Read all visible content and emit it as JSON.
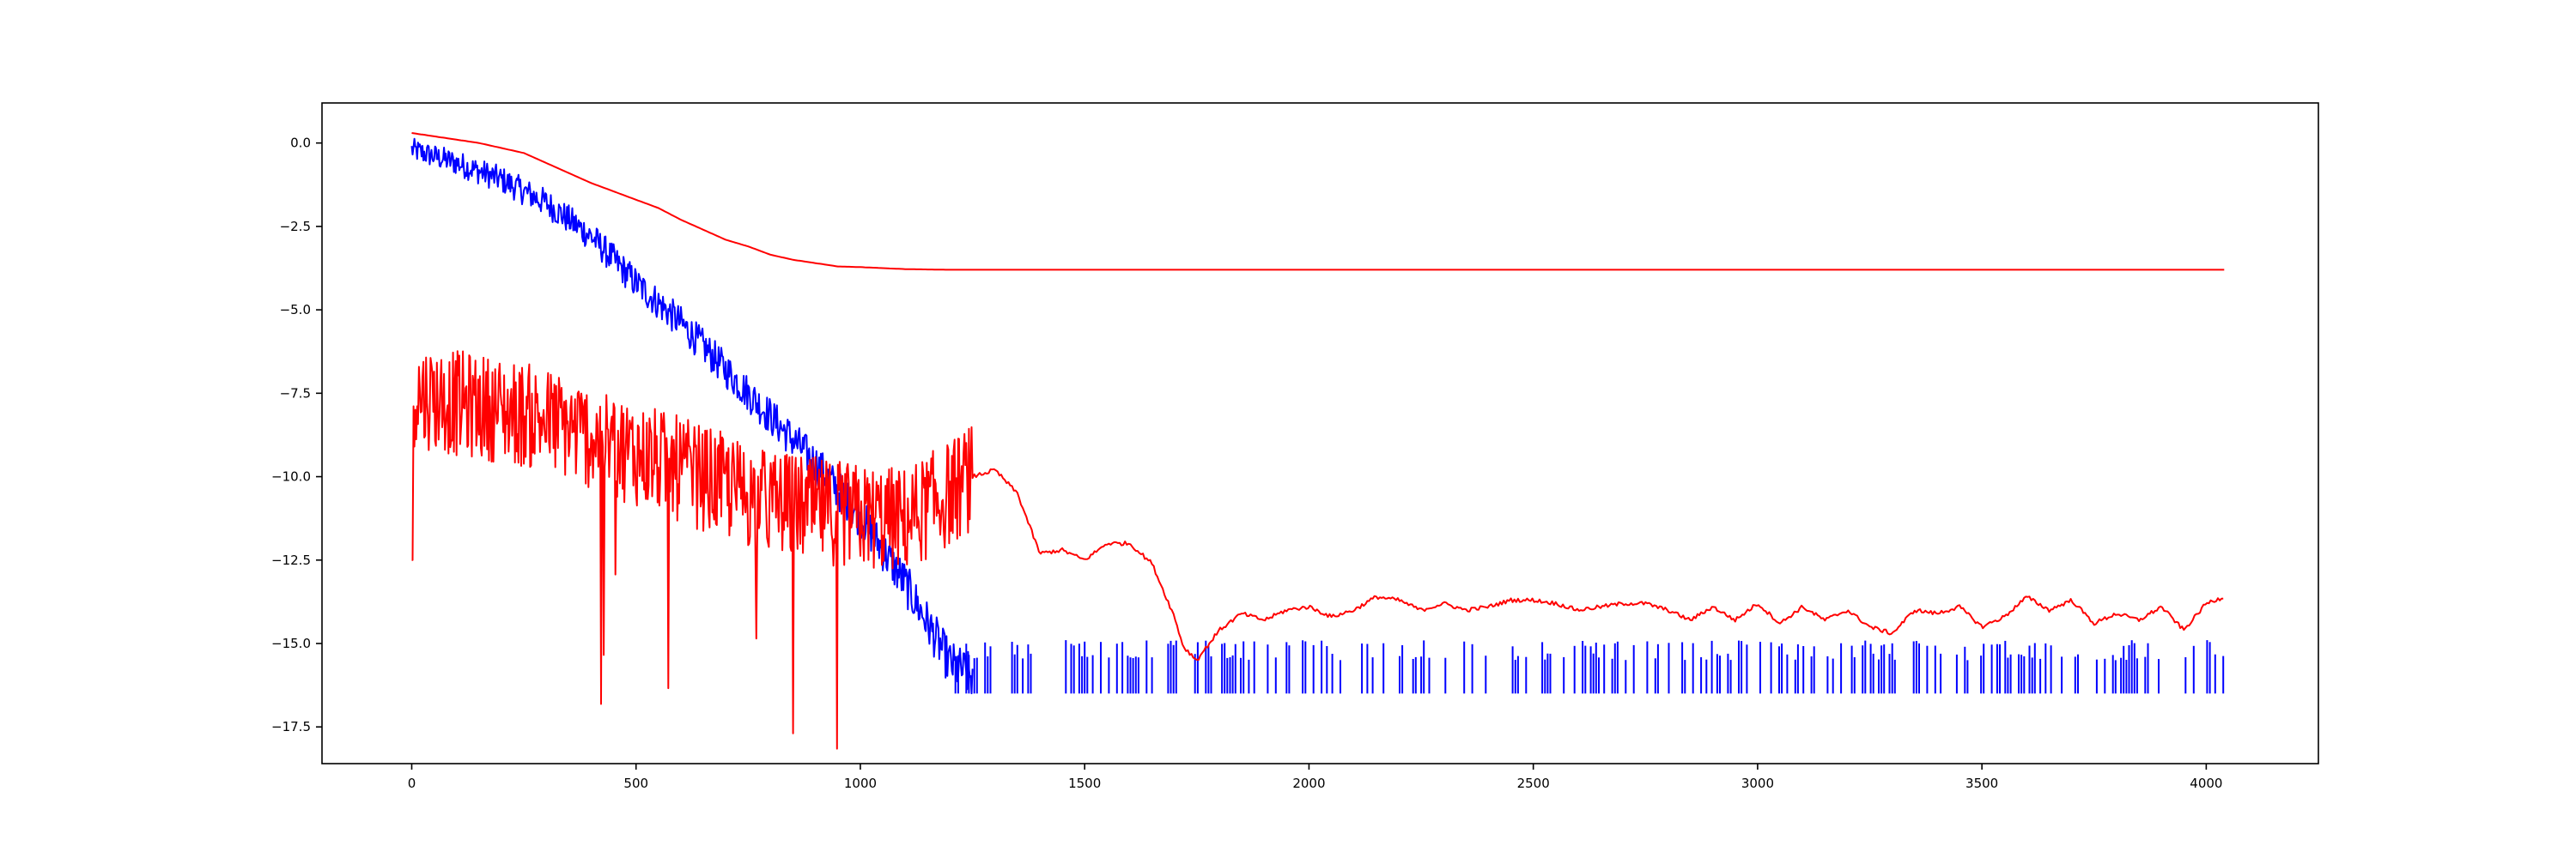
{
  "chart_data": {
    "type": "line",
    "title": "",
    "xlabel": "",
    "ylabel": "",
    "xlim": [
      -200,
      4250
    ],
    "ylim": [
      -18.6,
      1.2
    ],
    "x_ticks": [
      0,
      500,
      1000,
      1500,
      2000,
      2500,
      3000,
      3500,
      4000
    ],
    "x_tick_labels": [
      "0",
      "500",
      "1000",
      "1500",
      "2000",
      "2500",
      "3000",
      "3500",
      "4000"
    ],
    "y_ticks": [
      0.0,
      -2.5,
      -5.0,
      -7.5,
      -10.0,
      -12.5,
      -15.0,
      -17.5
    ],
    "y_tick_labels": [
      "0.0",
      "−2.5",
      "−5.0",
      "−7.5",
      "−10.0",
      "−12.5",
      "−15.0",
      "−17.5"
    ],
    "grid": false,
    "legend": "none",
    "series": [
      {
        "color": "#ff0000",
        "style": "smooth-upper",
        "x": [
          0,
          50,
          100,
          150,
          200,
          250,
          300,
          350,
          400,
          450,
          500,
          550,
          600,
          650,
          700,
          750,
          800,
          850,
          900,
          950,
          1000,
          1100,
          1200,
          1400,
          1600,
          2000,
          2500,
          3000,
          3500,
          4040
        ],
        "y": [
          0.3,
          0.2,
          0.1,
          0.0,
          -0.15,
          -0.3,
          -0.6,
          -0.9,
          -1.2,
          -1.45,
          -1.7,
          -1.95,
          -2.3,
          -2.6,
          -2.9,
          -3.1,
          -3.35,
          -3.5,
          -3.6,
          -3.7,
          -3.72,
          -3.78,
          -3.8,
          -3.8,
          -3.8,
          -3.8,
          -3.8,
          -3.8,
          -3.8,
          -3.8
        ]
      },
      {
        "color": "#0000ff",
        "style": "noisy-descent",
        "x": [
          0,
          100,
          200,
          300,
          400,
          500,
          600,
          700,
          800,
          900,
          1000,
          1100,
          1150,
          1200,
          1250
        ],
        "y": [
          -0.2,
          -0.6,
          -1.1,
          -1.8,
          -2.8,
          -4.2,
          -5.4,
          -6.8,
          -8.2,
          -9.6,
          -11.2,
          -13.2,
          -14.4,
          -15.6,
          -16.0
        ],
        "floor_segments": {
          "y_top": -15.3,
          "y_bottom": -16.5,
          "x_from": 1200,
          "x_to": 4040
        }
      },
      {
        "color": "#ff0000",
        "style": "noisy-lower",
        "x": [
          0,
          100,
          200,
          300,
          400,
          500,
          600,
          700,
          800,
          900,
          1000,
          1100,
          1200,
          1250,
          1300,
          1350,
          1400,
          1450,
          1500,
          1550,
          1600,
          1650,
          1700,
          1720,
          1750,
          1800,
          1850,
          1900,
          1950,
          2000,
          2050,
          2100,
          2150,
          2200,
          2250,
          2300,
          2350,
          2400,
          2450,
          2500,
          2550,
          2600,
          2650,
          2700,
          2750,
          2800,
          2850,
          2900,
          2950,
          3000,
          3050,
          3100,
          3150,
          3200,
          3250,
          3300,
          3350,
          3400,
          3450,
          3500,
          3550,
          3600,
          3650,
          3700,
          3750,
          3800,
          3850,
          3900,
          3950,
          4000,
          4040
        ],
        "y": [
          -7.5,
          -7.8,
          -8.0,
          -8.3,
          -8.8,
          -9.3,
          -9.8,
          -10.3,
          -10.8,
          -11.0,
          -11.2,
          -11.3,
          -10.5,
          -10.0,
          -9.8,
          -10.5,
          -12.3,
          -12.2,
          -12.5,
          -12.0,
          -12.0,
          -12.6,
          -14.2,
          -15.1,
          -15.5,
          -14.6,
          -14.1,
          -14.3,
          -14.0,
          -13.9,
          -14.2,
          -14.0,
          -13.6,
          -13.7,
          -14.0,
          -13.8,
          -14.0,
          -13.9,
          -13.7,
          -13.7,
          -13.8,
          -14.0,
          -13.9,
          -13.8,
          -13.8,
          -14.0,
          -14.3,
          -13.9,
          -14.3,
          -13.8,
          -14.4,
          -13.9,
          -14.3,
          -14.0,
          -14.5,
          -14.7,
          -14.0,
          -14.1,
          -13.9,
          -14.5,
          -14.2,
          -13.6,
          -14.0,
          -13.7,
          -14.4,
          -14.1,
          -14.3,
          -13.9,
          -14.6,
          -13.8,
          -13.6
        ]
      }
    ]
  }
}
